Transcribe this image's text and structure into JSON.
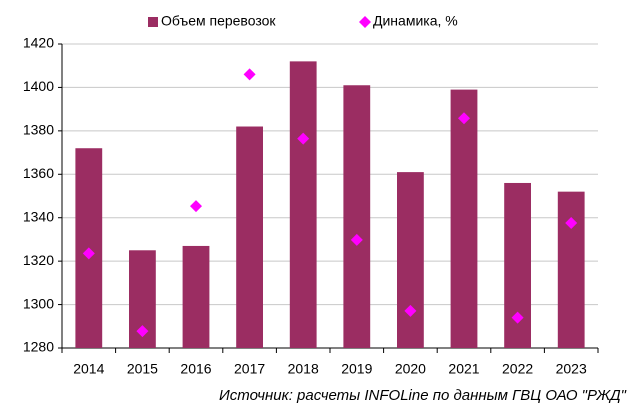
{
  "chart_data": {
    "type": "bar",
    "categories": [
      "2014",
      "2015",
      "2016",
      "2017",
      "2018",
      "2019",
      "2020",
      "2021",
      "2022",
      "2023"
    ],
    "series": [
      {
        "name": "Объем перевозок",
        "color": "#9b2d62",
        "type": "bar",
        "values": [
          1372,
          1325,
          1327,
          1382,
          1412,
          1401,
          1361,
          1399,
          1356,
          1352
        ]
      },
      {
        "name": "Динамика, %",
        "color": "#ff00ff",
        "type": "scatter",
        "axis": "y2",
        "values": [
          -1.2,
          -3.5,
          0.2,
          4.1,
          2.2,
          -0.8,
          -2.9,
          2.8,
          -3.1,
          -0.3
        ]
      }
    ],
    "ylim": [
      1280,
      1420
    ],
    "yticks": [
      1280,
      1300,
      1320,
      1340,
      1360,
      1380,
      1400,
      1420
    ],
    "y2lim": [
      -4,
      5
    ],
    "grid": true,
    "legend": "top",
    "source": "Источник: расчеты INFOLine по данным ГВЦ ОАО \"РЖД\""
  }
}
